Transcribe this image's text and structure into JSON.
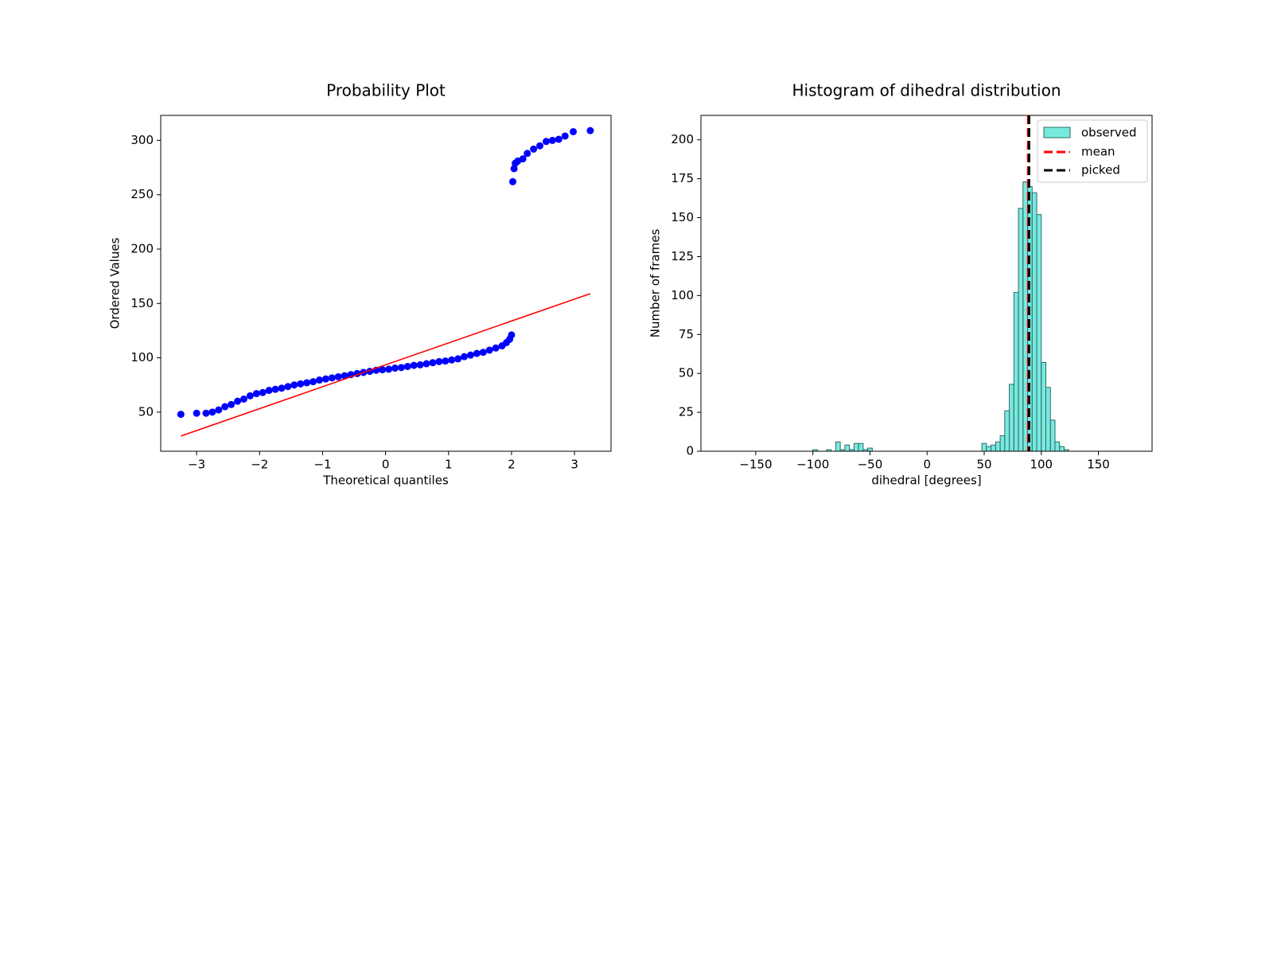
{
  "chart_data": [
    {
      "type": "scatter",
      "title": "Probability Plot",
      "xlabel": "Theoretical quantiles",
      "ylabel": "Ordered Values",
      "x": [
        -3.25,
        -3.0,
        -2.85,
        -2.75,
        -2.65,
        -2.55,
        -2.45,
        -2.35,
        -2.25,
        -2.15,
        -2.05,
        -1.95,
        -1.85,
        -1.75,
        -1.65,
        -1.55,
        -1.45,
        -1.35,
        -1.25,
        -1.15,
        -1.05,
        -0.95,
        -0.85,
        -0.75,
        -0.65,
        -0.55,
        -0.45,
        -0.35,
        -0.25,
        -0.15,
        -0.05,
        0.05,
        0.15,
        0.25,
        0.35,
        0.45,
        0.55,
        0.65,
        0.75,
        0.85,
        0.95,
        1.05,
        1.15,
        1.25,
        1.35,
        1.45,
        1.55,
        1.65,
        1.75,
        1.85,
        1.92,
        1.97,
        2.0,
        2.02,
        2.04,
        2.06,
        2.1,
        2.18,
        2.25,
        2.35,
        2.45,
        2.55,
        2.65,
        2.75,
        2.85,
        2.98,
        3.25
      ],
      "values": [
        48,
        49,
        49,
        50,
        52,
        55,
        57,
        60,
        62,
        65,
        67,
        68,
        70,
        71,
        72,
        73.5,
        75,
        76,
        77,
        78,
        79.5,
        80.5,
        81.5,
        82.5,
        83.5,
        84.5,
        85.5,
        86.5,
        87.5,
        88.5,
        89,
        89.5,
        90.5,
        91,
        92,
        93,
        93.5,
        94.5,
        95.5,
        96.5,
        97,
        98,
        99,
        101,
        102.5,
        104,
        105,
        107,
        109,
        111,
        114,
        117,
        121,
        262,
        274,
        279,
        281,
        283,
        288,
        292,
        295,
        299,
        300,
        301,
        304,
        308,
        309
      ],
      "color": "blue",
      "fit_x": [
        -3.25,
        3.25
      ],
      "fit_values": [
        28,
        159
      ],
      "fit_color": "red",
      "xlim": [
        -3.57,
        3.58
      ],
      "ylim": [
        14,
        323
      ],
      "xticks": [
        {
          "value": -3,
          "label": "−3"
        },
        {
          "value": -2,
          "label": "−2"
        },
        {
          "value": -1,
          "label": "−1"
        },
        0,
        1,
        2,
        3
      ],
      "yticks": [
        50,
        100,
        150,
        200,
        250,
        300
      ]
    },
    {
      "type": "histogram",
      "title": "Histogram of dihedral distribution",
      "xlabel": "dihedral [degrees]",
      "ylabel": "Number of frames",
      "name": "observed",
      "color": "#40e0d0",
      "bins": [
        -100,
        -96,
        -92,
        -88,
        -84,
        -80,
        -76,
        -72,
        -68,
        -64,
        -60,
        -56,
        -52,
        -48,
        -44,
        -40,
        -36,
        -32,
        -28,
        -24,
        -20,
        -16,
        -12,
        -8,
        -4,
        0,
        4,
        8,
        12,
        16,
        20,
        24,
        28,
        32,
        36,
        40,
        44,
        48,
        52,
        56,
        60,
        64,
        68,
        72,
        76,
        80,
        84,
        88,
        92,
        96,
        100,
        104,
        108,
        112,
        116,
        120,
        124
      ],
      "values": [
        1,
        0,
        0,
        1,
        0,
        6,
        1,
        4,
        1,
        5,
        5,
        1,
        2,
        0,
        0,
        0,
        0,
        0,
        0,
        0,
        0,
        0,
        0,
        0,
        0,
        0,
        0,
        0,
        0,
        0,
        0,
        0,
        0,
        0,
        0,
        0,
        0,
        5,
        3,
        4,
        6,
        10,
        26,
        43,
        102,
        156,
        173,
        170,
        166,
        152,
        57,
        41,
        20,
        6,
        3,
        1
      ],
      "vlines": [
        {
          "name": "mean",
          "color": "red",
          "x": 88.5
        },
        {
          "name": "picked",
          "color": "black",
          "x": 89.3
        }
      ],
      "xlim": [
        -198,
        197
      ],
      "ylim": [
        0,
        215.7
      ],
      "xticks": [
        {
          "value": -150,
          "label": "−150"
        },
        {
          "value": -100,
          "label": "−100"
        },
        {
          "value": -50,
          "label": "−50"
        },
        0,
        50,
        100,
        150
      ],
      "yticks": [
        0,
        25,
        50,
        75,
        100,
        125,
        150,
        175,
        200
      ],
      "legend": "upper right"
    }
  ]
}
